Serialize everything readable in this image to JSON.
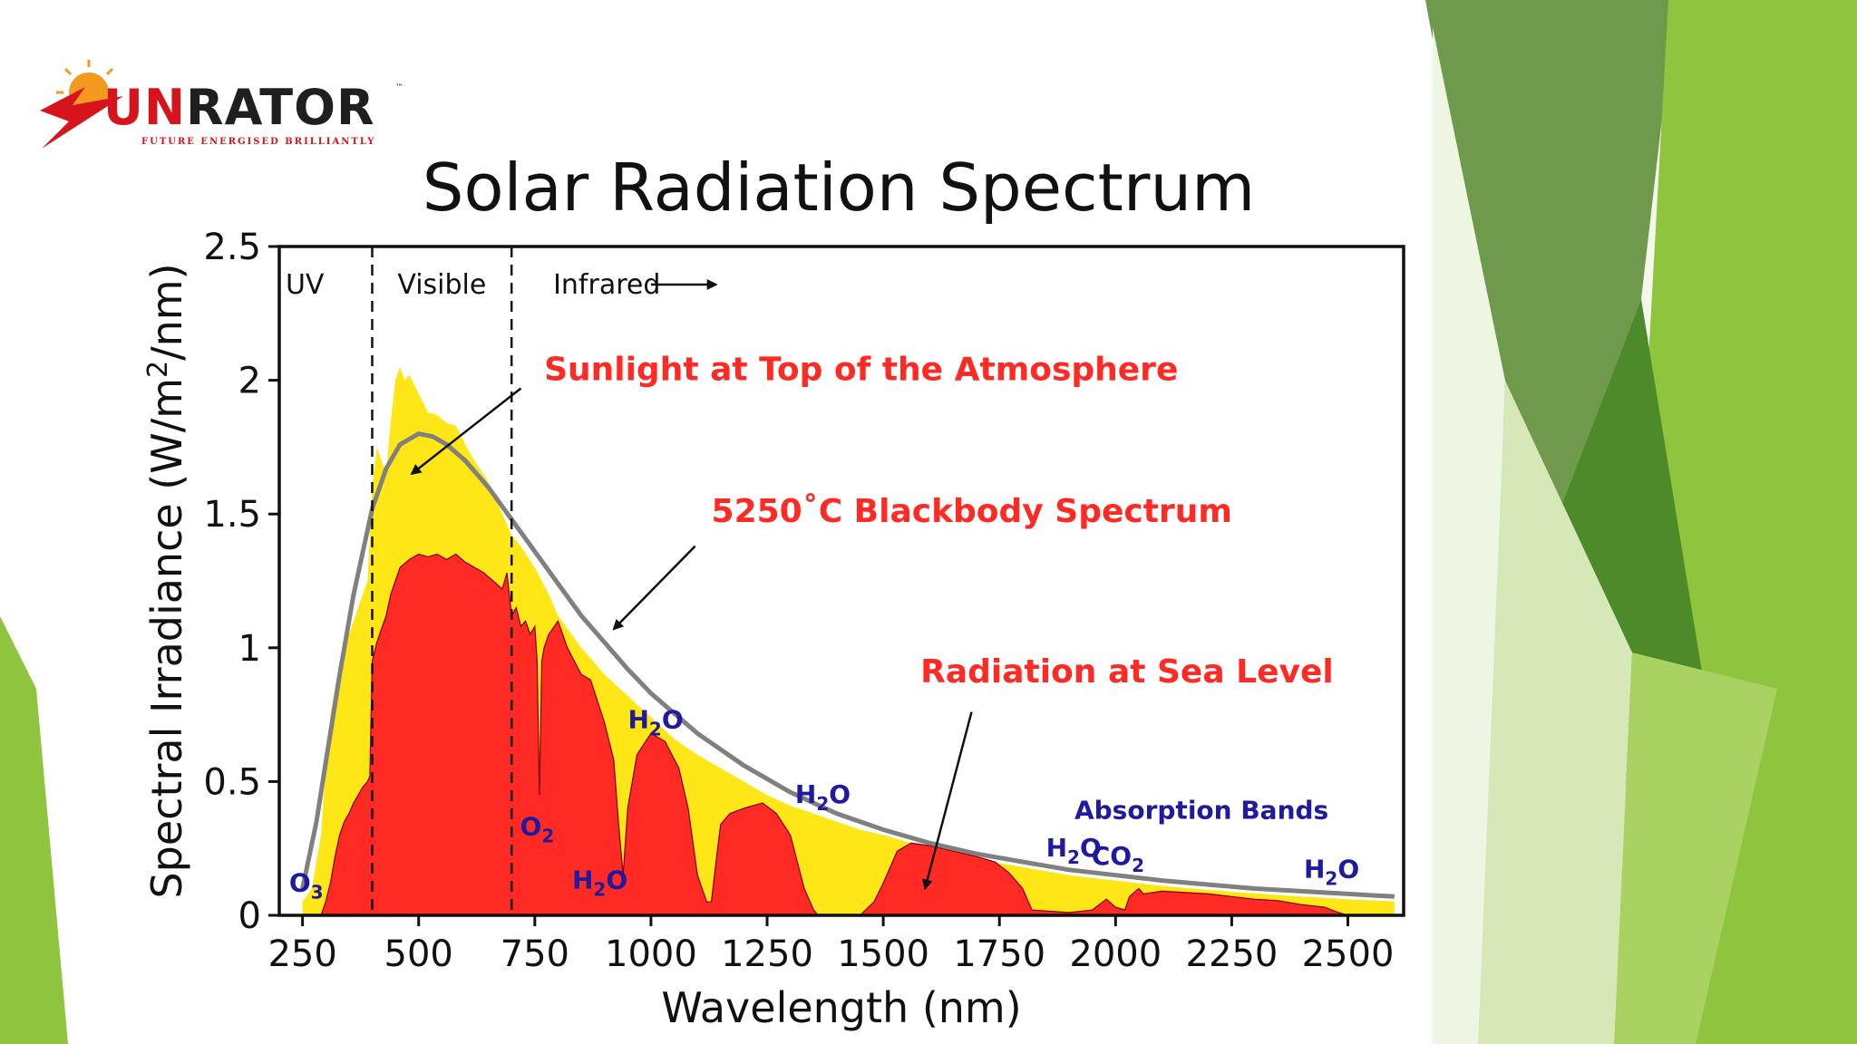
{
  "slide": {
    "theme_colors": {
      "green_dark": "#5e8f3a",
      "green_mid": "#8cbc45",
      "green_light": "#c6df9a",
      "green_bright": "#94c843"
    }
  },
  "logo": {
    "brand_initial": "S",
    "brand_part1": "UN",
    "brand_part2": "RATOR",
    "trademark": "™",
    "tagline": "FUTURE ENERGISED BRILLIANTLY",
    "icon": "sun-swoosh-icon",
    "colors": {
      "red": "#d7141c",
      "orange": "#f39a1e",
      "dark": "#1f1f1f"
    }
  },
  "chart_data": {
    "type": "area",
    "title": "Solar Radiation Spectrum",
    "xlabel": "Wavelength (nm)",
    "ylabel_main": "Spectral Irradiance (W/m",
    "ylabel_sup": "2",
    "ylabel_end": "/nm)",
    "xlim": [
      200,
      2620
    ],
    "ylim": [
      0,
      2.5
    ],
    "xticks": [
      250,
      500,
      750,
      1000,
      1250,
      1500,
      1750,
      2000,
      2250,
      2500
    ],
    "yticks": [
      {
        "value": 0,
        "label": "0"
      },
      {
        "value": 0.5,
        "label": "0.5"
      },
      {
        "value": 1,
        "label": "1"
      },
      {
        "value": 1.5,
        "label": "1.5"
      },
      {
        "value": 2,
        "label": "2"
      },
      {
        "value": 2.5,
        "label": "2.5"
      }
    ],
    "grid": false,
    "regions": [
      {
        "label": "UV",
        "x": 255
      },
      {
        "label": "Visible",
        "x": 550
      },
      {
        "label": "Infrared",
        "x": 905
      }
    ],
    "region_dividers": [
      400,
      700
    ],
    "infrared_arrow_x": [
      1000,
      1140
    ],
    "series": [
      {
        "name": "Sunlight at Top of the Atmosphere",
        "color": "#ffe617",
        "x": [
          250,
          270,
          290,
          300,
          310,
          330,
          350,
          370,
          380,
          390,
          400,
          410,
          420,
          430,
          440,
          450,
          460,
          470,
          480,
          500,
          520,
          540,
          560,
          580,
          600,
          620,
          650,
          680,
          700,
          720,
          750,
          780,
          800,
          850,
          900,
          950,
          1000,
          1050,
          1100,
          1150,
          1200,
          1250,
          1300,
          1350,
          1400,
          1450,
          1500,
          1550,
          1600,
          1650,
          1700,
          1750,
          1800,
          1850,
          1900,
          1950,
          2000,
          2050,
          2100,
          2150,
          2200,
          2250,
          2300,
          2350,
          2400,
          2450,
          2500,
          2550,
          2600
        ],
        "y": [
          0.05,
          0.1,
          0.3,
          0.55,
          0.75,
          0.95,
          1.05,
          1.15,
          1.2,
          1.25,
          1.6,
          1.75,
          1.7,
          1.65,
          1.85,
          2.0,
          2.05,
          2.0,
          2.02,
          1.95,
          1.88,
          1.87,
          1.84,
          1.83,
          1.76,
          1.7,
          1.62,
          1.5,
          1.42,
          1.38,
          1.3,
          1.2,
          1.12,
          1.0,
          0.9,
          0.82,
          0.74,
          0.66,
          0.6,
          0.55,
          0.5,
          0.45,
          0.41,
          0.38,
          0.35,
          0.32,
          0.3,
          0.275,
          0.255,
          0.235,
          0.215,
          0.195,
          0.18,
          0.165,
          0.15,
          0.14,
          0.13,
          0.12,
          0.11,
          0.102,
          0.095,
          0.088,
          0.082,
          0.076,
          0.07,
          0.065,
          0.06,
          0.056,
          0.052
        ]
      },
      {
        "name": "5250˚C Blackbody Spectrum",
        "color": "#808080",
        "x": [
          250,
          280,
          300,
          330,
          360,
          400,
          430,
          460,
          500,
          530,
          560,
          600,
          650,
          700,
          750,
          800,
          850,
          900,
          950,
          1000,
          1100,
          1200,
          1300,
          1400,
          1500,
          1600,
          1700,
          1800,
          1900,
          2000,
          2100,
          2200,
          2300,
          2400,
          2500,
          2600
        ],
        "y": [
          0.1,
          0.35,
          0.57,
          0.9,
          1.2,
          1.52,
          1.67,
          1.76,
          1.8,
          1.79,
          1.76,
          1.7,
          1.6,
          1.48,
          1.36,
          1.24,
          1.12,
          1.02,
          0.92,
          0.83,
          0.68,
          0.56,
          0.46,
          0.38,
          0.32,
          0.27,
          0.23,
          0.2,
          0.17,
          0.15,
          0.13,
          0.115,
          0.1,
          0.09,
          0.08,
          0.07
        ]
      },
      {
        "name": "Radiation at Sea Level",
        "color": "#ff2a24",
        "x": [
          290,
          300,
          310,
          320,
          330,
          340,
          350,
          360,
          370,
          380,
          390,
          395,
          400,
          410,
          420,
          430,
          440,
          450,
          460,
          480,
          500,
          520,
          540,
          560,
          580,
          600,
          620,
          640,
          660,
          680,
          690,
          700,
          710,
          720,
          730,
          740,
          750,
          755,
          760,
          765,
          770,
          780,
          800,
          820,
          850,
          870,
          900,
          920,
          930,
          940,
          950,
          970,
          1000,
          1030,
          1060,
          1080,
          1100,
          1120,
          1130,
          1140,
          1150,
          1170,
          1200,
          1240,
          1270,
          1300,
          1330,
          1350,
          1360,
          1400,
          1450,
          1480,
          1500,
          1530,
          1560,
          1600,
          1650,
          1700,
          1740,
          1770,
          1800,
          1820,
          1900,
          1950,
          1980,
          2000,
          2020,
          2030,
          2050,
          2060,
          2100,
          2150,
          2200,
          2250,
          2300,
          2350,
          2400,
          2450,
          2480,
          2500
        ],
        "y": [
          0,
          0.05,
          0.12,
          0.22,
          0.3,
          0.35,
          0.38,
          0.42,
          0.45,
          0.48,
          0.5,
          0.52,
          0.95,
          1.02,
          1.07,
          1.12,
          1.2,
          1.25,
          1.3,
          1.33,
          1.35,
          1.34,
          1.35,
          1.33,
          1.35,
          1.32,
          1.3,
          1.28,
          1.25,
          1.22,
          1.28,
          1.12,
          1.15,
          1.08,
          1.1,
          1.05,
          1.08,
          0.95,
          0.45,
          0.95,
          1.0,
          1.05,
          1.1,
          1.0,
          0.9,
          0.88,
          0.72,
          0.58,
          0.35,
          0.15,
          0.4,
          0.6,
          0.68,
          0.65,
          0.55,
          0.4,
          0.15,
          0.05,
          0.05,
          0.2,
          0.34,
          0.38,
          0.4,
          0.42,
          0.38,
          0.3,
          0.1,
          0.02,
          0,
          0,
          0,
          0.05,
          0.12,
          0.24,
          0.27,
          0.26,
          0.24,
          0.22,
          0.2,
          0.16,
          0.1,
          0.02,
          0.01,
          0.02,
          0.06,
          0.03,
          0.02,
          0.07,
          0.1,
          0.08,
          0.09,
          0.085,
          0.08,
          0.07,
          0.06,
          0.055,
          0.04,
          0.03,
          0.01,
          0
        ]
      }
    ],
    "annotations": [
      {
        "text": "Sunlight at Top of the Atmosphere",
        "color": "#ff2a24",
        "x": 770,
        "y": 2.0,
        "arrow": {
          "from": [
            720,
            1.97
          ],
          "to": [
            485,
            1.65
          ]
        }
      },
      {
        "text": "5250˚C Blackbody Spectrum",
        "color": "#ff2a24",
        "x": 1130,
        "y": 1.47,
        "arrow": {
          "from": [
            1095,
            1.38
          ],
          "to": [
            920,
            1.07
          ]
        }
      },
      {
        "text": "Radiation at Sea Level",
        "color": "#ff2a24",
        "x": 1580,
        "y": 0.87,
        "arrow": {
          "from": [
            1690,
            0.76
          ],
          "to": [
            1590,
            0.1
          ]
        }
      }
    ],
    "absorption_labels": [
      {
        "main": "H",
        "sub": "2",
        "tail": "O",
        "x": 1010,
        "y": 0.7
      },
      {
        "main": "H",
        "sub": "2",
        "tail": "O",
        "x": 1370,
        "y": 0.42
      },
      {
        "main": "O",
        "sub": "2",
        "tail": "",
        "x": 755,
        "y": 0.3
      },
      {
        "main": "H",
        "sub": "2",
        "tail": "O",
        "x": 890,
        "y": 0.1
      },
      {
        "main": "H",
        "sub": "2",
        "tail": "O",
        "x": 1910,
        "y": 0.22
      },
      {
        "main": "CO",
        "sub": "2",
        "tail": "",
        "x": 2005,
        "y": 0.19
      },
      {
        "main": "H",
        "sub": "2",
        "tail": "O",
        "x": 2465,
        "y": 0.14
      },
      {
        "main": "O",
        "sub": "3",
        "tail": "",
        "x": 258,
        "y": 0.09
      }
    ],
    "absorption_title": {
      "text": "Absorption Bands",
      "x": 2185,
      "y": 0.36
    },
    "label_color": "#1f1aa0"
  }
}
